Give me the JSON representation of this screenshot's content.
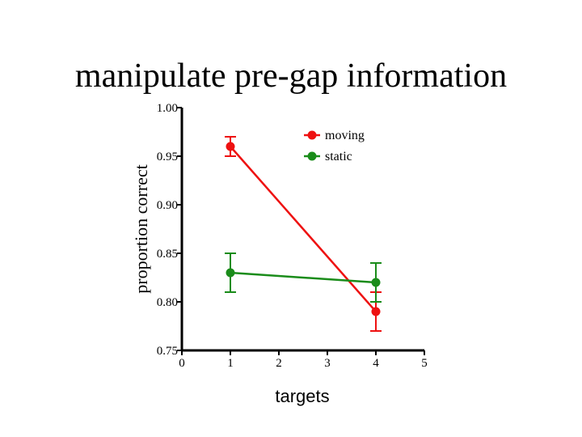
{
  "slide": {
    "title": "manipulate pre-gap information"
  },
  "chart_data": {
    "type": "line",
    "xlabel": "targets",
    "ylabel": "proportion correct",
    "xlim": [
      0,
      5
    ],
    "ylim": [
      0.75,
      1.0
    ],
    "x_ticks": [
      0,
      1,
      2,
      3,
      4,
      5
    ],
    "y_ticks": [
      0.75,
      0.8,
      0.85,
      0.9,
      0.95,
      1.0
    ],
    "x_tick_labels": [
      "0",
      "1",
      "2",
      "3",
      "4",
      "5"
    ],
    "y_tick_labels": [
      "0.75",
      "0.80",
      "0.85",
      "0.90",
      "0.95",
      "1.00"
    ],
    "grid": false,
    "legend_position": "top-right",
    "series": [
      {
        "name": "moving",
        "color": "#ee1111",
        "x": [
          1,
          4
        ],
        "y": [
          0.96,
          0.79
        ],
        "err_low": [
          0.95,
          0.77
        ],
        "err_high": [
          0.97,
          0.81
        ]
      },
      {
        "name": "static",
        "color": "#1a8c1a",
        "x": [
          1,
          4
        ],
        "y": [
          0.83,
          0.82
        ],
        "err_low": [
          0.81,
          0.8
        ],
        "err_high": [
          0.85,
          0.84
        ]
      }
    ]
  }
}
